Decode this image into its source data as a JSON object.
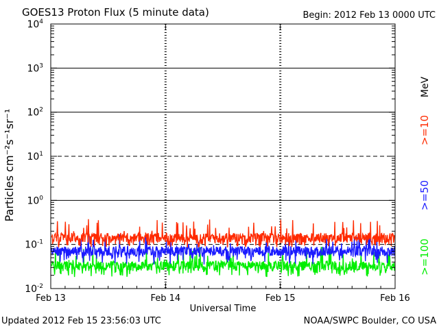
{
  "header": {
    "title": "GOES13 Proton Flux (5 minute data)",
    "begin": "Begin: 2012 Feb 13 0000 UTC"
  },
  "footer": {
    "updated": "Updated 2012 Feb 15 23:56:03 UTC",
    "source": "NOAA/SWPC Boulder, CO USA"
  },
  "chart_data": {
    "type": "line",
    "title": "GOES13 Proton Flux (5 minute data)",
    "xlabel": "Universal Time",
    "ylabel": "Particles cm⁻²s⁻¹sr⁻¹",
    "yscale": "log",
    "ylim": [
      0.01,
      10000
    ],
    "xlim": [
      "2012-02-13 00:00",
      "2012-02-16 00:00"
    ],
    "x_ticks": [
      "Feb 13",
      "Feb 14",
      "Feb 15",
      "Feb 16"
    ],
    "y_ticks": [
      {
        "base": "10",
        "exp": "-2",
        "value": 0.01
      },
      {
        "base": "10",
        "exp": "-1",
        "value": 0.1
      },
      {
        "base": "10",
        "exp": "0",
        "value": 1
      },
      {
        "base": "10",
        "exp": "1",
        "value": 10
      },
      {
        "base": "10",
        "exp": "2",
        "value": 100
      },
      {
        "base": "10",
        "exp": "3",
        "value": 1000
      },
      {
        "base": "10",
        "exp": "4",
        "value": 10000
      }
    ],
    "reference_lines": [
      {
        "value": 10,
        "style": "dashed"
      },
      {
        "value": 0.1,
        "style": "dashed"
      }
    ],
    "unit_label": "MeV",
    "legend_position": "right",
    "series": [
      {
        "name": ">=10",
        "color": "#ff2a00",
        "baseline": 0.13,
        "peak": 0.38,
        "floor": 0.085
      },
      {
        "name": ">=50",
        "color": "#1a1aff",
        "baseline": 0.065,
        "peak": 0.17,
        "floor": 0.035
      },
      {
        "name": ">=100",
        "color": "#00ee00",
        "baseline": 0.03,
        "peak": 0.09,
        "floor": 0.018
      }
    ]
  }
}
